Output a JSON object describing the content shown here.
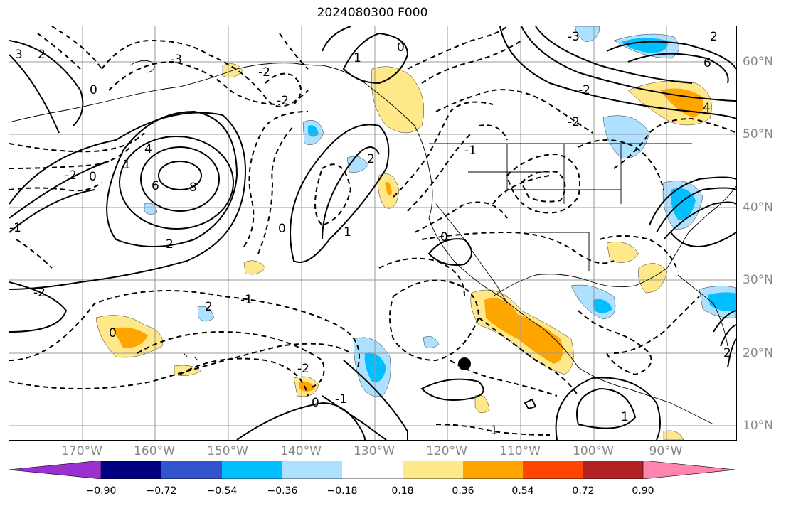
{
  "title": "2024080300 F000",
  "lat_labels": [
    "60°N",
    "50°N",
    "40°N",
    "30°N",
    "20°N",
    "10°N"
  ],
  "lon_labels": [
    "170°W",
    "160°W",
    "150°W",
    "140°W",
    "130°W",
    "120°W",
    "110°W",
    "100°W",
    "90°W"
  ],
  "colorbar": {
    "colors": [
      "#9b30d0",
      "#000080",
      "#3355cc",
      "#00bfff",
      "#aee1ff",
      "#ffffff",
      "#ffe88a",
      "#ffa500",
      "#ff4500",
      "#b22222",
      "#ff85ad"
    ],
    "ticks": [
      "−0.90",
      "−0.72",
      "−0.54",
      "−0.36",
      "−0.18",
      "0.18",
      "0.36",
      "0.54",
      "0.72",
      "0.90"
    ]
  },
  "contour_labels": [
    "3",
    "2",
    "0",
    "-2",
    "-3",
    "6",
    "4",
    "8",
    "-1",
    "1",
    "2",
    "-2",
    "0",
    "0",
    "-1",
    "2",
    "-2",
    "1",
    "0",
    "-1",
    "-2",
    "0",
    "4",
    "6",
    "2",
    "-3",
    "0",
    "-2",
    "-1",
    "1",
    "2",
    "0",
    "-2",
    "1",
    "-1",
    "2",
    "-2"
  ]
}
